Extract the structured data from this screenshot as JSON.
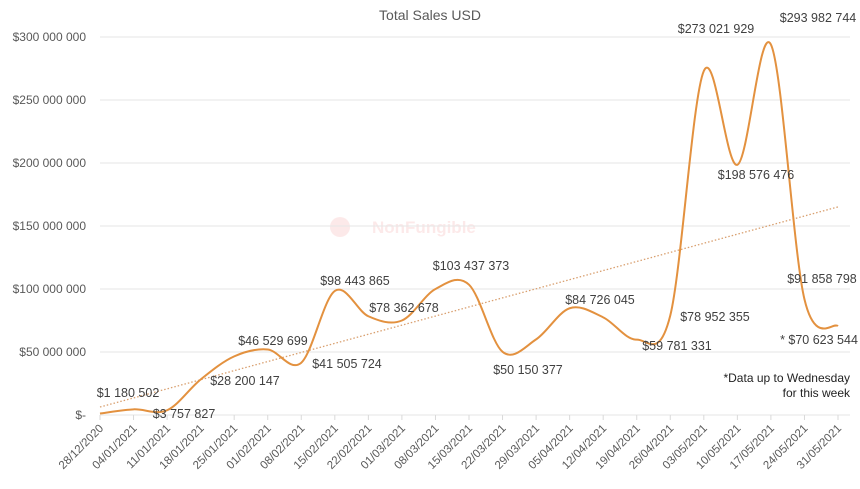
{
  "chart_data": {
    "type": "line",
    "title": "Total Sales USD",
    "xlabel": "",
    "ylabel": "",
    "ylim": [
      0,
      300000000
    ],
    "yticks": [
      0,
      50000000,
      100000000,
      150000000,
      200000000,
      250000000,
      300000000
    ],
    "ytick_labels": [
      "$-",
      "$50 000 000",
      "$100 000 000",
      "$150 000 000",
      "$200 000 000",
      "$250 000 000",
      "$300 000 000"
    ],
    "grid": "horizontal",
    "smoothed": true,
    "trendline": "linear (dotted)",
    "categories": [
      "28/12/2020",
      "04/01/2021",
      "11/01/2021",
      "18/01/2021",
      "25/01/2021",
      "01/02/2021",
      "08/02/2021",
      "15/02/2021",
      "22/02/2021",
      "01/03/2021",
      "08/03/2021",
      "15/03/2021",
      "22/03/2021",
      "29/03/2021",
      "05/04/2021",
      "12/04/2021",
      "19/04/2021",
      "26/04/2021",
      "03/05/2021",
      "10/05/2021",
      "17/05/2021",
      "24/05/2021",
      "31/05/2021"
    ],
    "values": [
      1180502,
      4500000,
      3757827,
      28200147,
      46529699,
      52000000,
      41505724,
      98443865,
      78362678,
      75000000,
      100000000,
      103437373,
      50150377,
      60000000,
      84726045,
      77500000,
      59781331,
      78952355,
      273021929,
      198576476,
      293982744,
      91858798,
      70623544
    ],
    "data_labels": [
      {
        "index": 0,
        "text": "$1 180 502"
      },
      {
        "index": 2,
        "text": "$3 757 827"
      },
      {
        "index": 3,
        "text": "$28 200 147"
      },
      {
        "index": 4,
        "text": "$46 529 699"
      },
      {
        "index": 6,
        "text": "$41 505 724"
      },
      {
        "index": 7,
        "text": "$98 443 865"
      },
      {
        "index": 8,
        "text": "$78 362 678"
      },
      {
        "index": 11,
        "text": "$103 437 373"
      },
      {
        "index": 12,
        "text": "$50 150 377"
      },
      {
        "index": 14,
        "text": "$84 726 045"
      },
      {
        "index": 16,
        "text": "$59 781 331"
      },
      {
        "index": 17,
        "text": "$78 952 355"
      },
      {
        "index": 18,
        "text": "$273 021 929"
      },
      {
        "index": 19,
        "text": "$198 576 476"
      },
      {
        "index": 20,
        "text": "$293 982 744"
      },
      {
        "index": 21,
        "text": "$91 858 798"
      },
      {
        "index": 22,
        "text": "* $70 623 544"
      }
    ],
    "annotation": [
      "*Data up to Wednesday",
      "for this week"
    ],
    "watermark": "NonFungible",
    "colors": {
      "line": "#E3913F",
      "trend": "#D9A070",
      "grid": "#E6E6E6",
      "text": "#404040"
    }
  }
}
